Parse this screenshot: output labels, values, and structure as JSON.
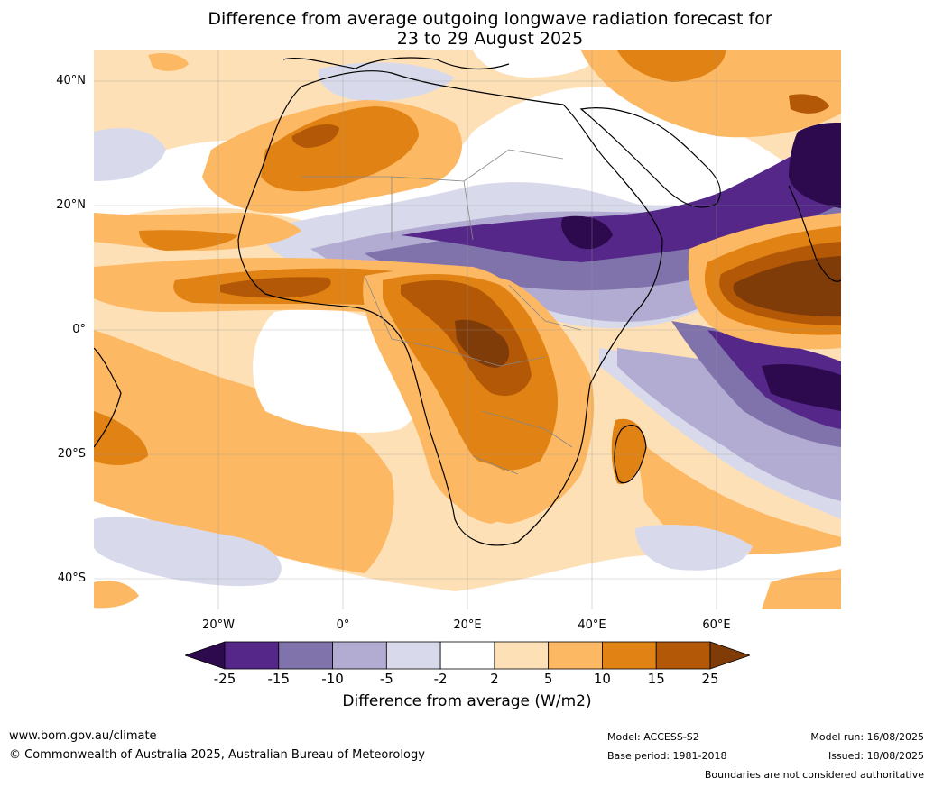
{
  "title_line1": "Difference from average outgoing longwave radiation forecast for",
  "title_line2": "23 to 29 August 2025",
  "lat_labels": [
    "40°N",
    "20°N",
    "0°",
    "20°S",
    "40°S"
  ],
  "lon_labels": [
    "20°W",
    "0°",
    "20°E",
    "40°E",
    "60°E"
  ],
  "colorbar": {
    "ticks": [
      "-25",
      "-15",
      "-10",
      "-5",
      "-2",
      "2",
      "5",
      "10",
      "15",
      "25"
    ],
    "colors": [
      "#2d0a4e",
      "#542788",
      "#8073ac",
      "#b2abd2",
      "#d8daeb",
      "#ffffff",
      "#fee0b6",
      "#fdb863",
      "#e08214",
      "#b35806",
      "#7f3b08"
    ],
    "label": "Difference from average (W/m2)"
  },
  "footer": {
    "website": "www.bom.gov.au/climate",
    "copyright": "© Commonwealth of Australia 2025, Australian Bureau of Meteorology",
    "model": "Model: ACCESS-S2",
    "base_period": "Base period: 1981-2018",
    "model_run": "Model run: 16/08/2025",
    "issued": "Issued: 18/08/2025",
    "disclaimer": "Boundaries are not considered authoritative"
  }
}
